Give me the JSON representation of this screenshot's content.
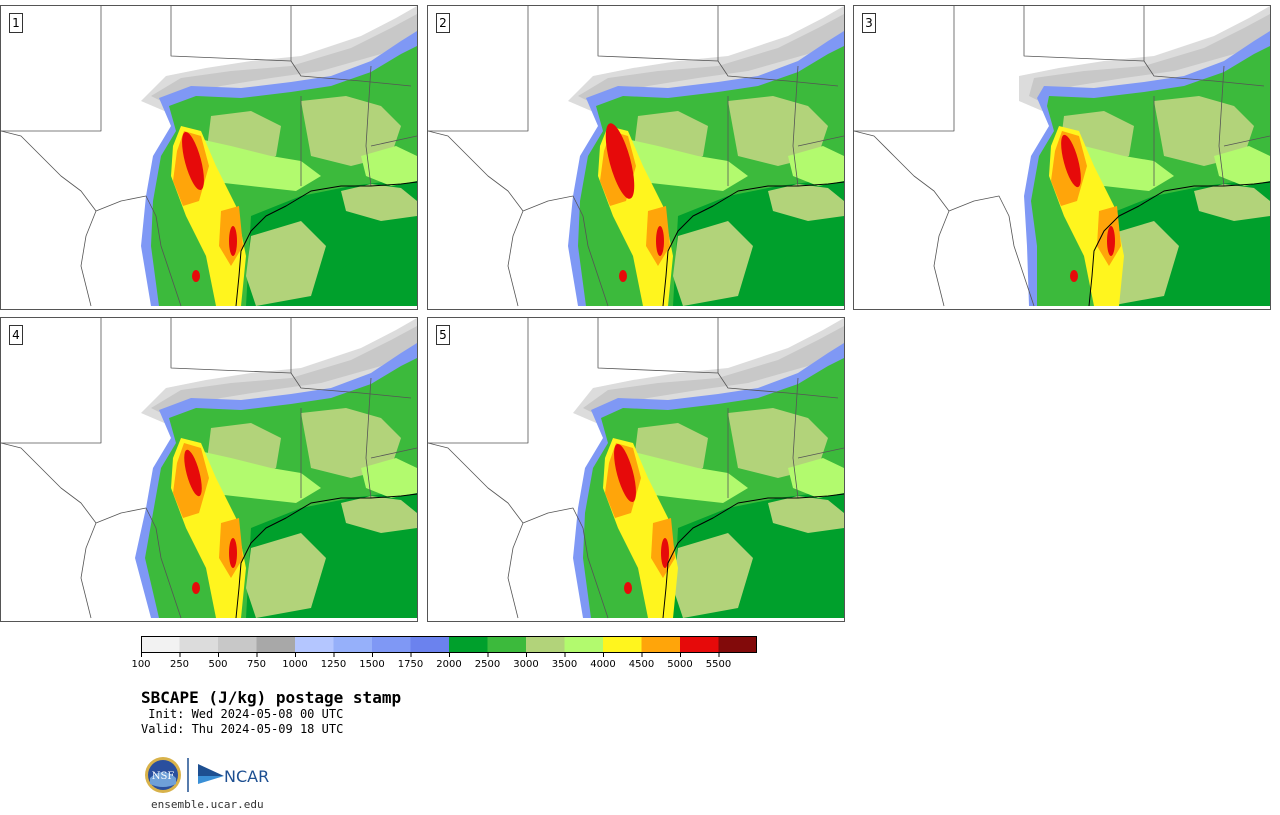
{
  "title": "SBCAPE (J/kg) postage stamp",
  "init": " Init: Wed 2024-05-08 00 UTC",
  "valid": "Valid: Thu 2024-05-09 18 UTC",
  "url": "ensemble.ucar.edu",
  "logos": {
    "nsf_text": "NSF",
    "ncar_text": "NCAR"
  },
  "panels": [
    {
      "label": "1"
    },
    {
      "label": "2"
    },
    {
      "label": "3"
    },
    {
      "label": "4"
    },
    {
      "label": "5"
    }
  ],
  "colorbar": {
    "ticks": [
      "100",
      "250",
      "500",
      "750",
      "1000",
      "1250",
      "1500",
      "1750",
      "2000",
      "2500",
      "3000",
      "3500",
      "4000",
      "4500",
      "5000",
      "5500"
    ],
    "colors": [
      "#f2f2f2",
      "#dcdcdc",
      "#c8c8c8",
      "#a8a8a8",
      "#b4c6ff",
      "#96b0fa",
      "#7f98f5",
      "#6b82ee",
      "#00a02c",
      "#3cba3c",
      "#b2d37a",
      "#b2fa6e",
      "#fff51e",
      "#ffa50a",
      "#e60a0a",
      "#820a0a"
    ]
  }
}
